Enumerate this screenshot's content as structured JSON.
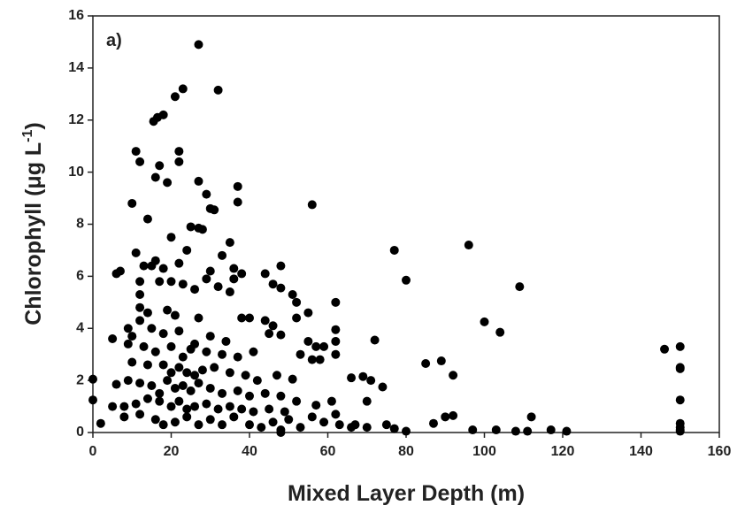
{
  "chart_data": {
    "type": "scatter",
    "panel_label": "a)",
    "xlabel": "Mixed Layer Depth (m)",
    "ylabel": [
      "Chlorophyll (μg L",
      "-1",
      ")"
    ],
    "xlim": [
      0,
      160
    ],
    "xticks": [
      0,
      20,
      40,
      60,
      80,
      100,
      120,
      140,
      160
    ],
    "ylim": [
      0,
      16
    ],
    "yticks": [
      0,
      2,
      4,
      6,
      8,
      10,
      12,
      14,
      16
    ],
    "grid": false,
    "series": [
      {
        "color": "#000000",
        "x": [
          27,
          23,
          32,
          21,
          18,
          16.5,
          15.5,
          11,
          22,
          12,
          22,
          17,
          16,
          19,
          27,
          29,
          37,
          10,
          30,
          31,
          37,
          56,
          14,
          25,
          27,
          28,
          20,
          35,
          77,
          96,
          24,
          11,
          16,
          33,
          6,
          7,
          13,
          15,
          18,
          22,
          30,
          36,
          38,
          44,
          48,
          80,
          109,
          12,
          17,
          20,
          23,
          29,
          36,
          46,
          48,
          51,
          12,
          26,
          32,
          35,
          52,
          62,
          55,
          100,
          104,
          12,
          14,
          19,
          21,
          27,
          38,
          40,
          44,
          46,
          52,
          62,
          12,
          15,
          9,
          10,
          5,
          18,
          22,
          30,
          34,
          45,
          48,
          55,
          57,
          59,
          62,
          72,
          9,
          13,
          16,
          20,
          25,
          29,
          33,
          37,
          41,
          53,
          56,
          62,
          58,
          85,
          89,
          92,
          146,
          150,
          150,
          150,
          150,
          150,
          150,
          150,
          150,
          10,
          14,
          18,
          22,
          24,
          26,
          28,
          31,
          35,
          39,
          42,
          47,
          51,
          66,
          69,
          71,
          74,
          0,
          6,
          9,
          12,
          15,
          19,
          21,
          23,
          25,
          27,
          30,
          33,
          37,
          40,
          44,
          48,
          52,
          57,
          61,
          0,
          5,
          8,
          11,
          14,
          17,
          20,
          22,
          24,
          26,
          29,
          32,
          35,
          38,
          41,
          45,
          49,
          62,
          67,
          2,
          8,
          12,
          16,
          18,
          21,
          24,
          27,
          30,
          33,
          36,
          40,
          43,
          46,
          48,
          53,
          56,
          59,
          63,
          66,
          70,
          75,
          77,
          80,
          87,
          90,
          92,
          97,
          103,
          108,
          111,
          112,
          117,
          121,
          50,
          70,
          48,
          20,
          23,
          26,
          17
        ],
        "values": [
          14.9,
          13.2,
          13.15,
          12.9,
          12.2,
          12.1,
          11.95,
          10.8,
          10.8,
          10.4,
          10.4,
          10.25,
          9.8,
          9.6,
          9.65,
          9.15,
          9.45,
          8.8,
          8.6,
          8.55,
          8.85,
          8.75,
          8.2,
          7.9,
          7.85,
          7.8,
          7.5,
          7.3,
          7.0,
          7.2,
          7.0,
          6.9,
          6.6,
          6.8,
          6.1,
          6.2,
          6.4,
          6.4,
          6.3,
          6.5,
          6.2,
          6.3,
          6.1,
          6.1,
          6.4,
          5.85,
          5.6,
          5.8,
          5.8,
          5.8,
          5.7,
          5.9,
          5.9,
          5.7,
          5.55,
          5.3,
          5.3,
          5.5,
          5.6,
          5.4,
          5.0,
          5.0,
          4.6,
          4.25,
          3.85,
          4.8,
          4.6,
          4.7,
          4.5,
          4.4,
          4.4,
          4.4,
          4.3,
          4.1,
          4.4,
          3.95,
          4.3,
          4.0,
          4.0,
          3.7,
          3.6,
          3.8,
          3.9,
          3.7,
          3.5,
          3.8,
          3.75,
          3.5,
          3.3,
          3.3,
          3.5,
          3.55,
          3.4,
          3.3,
          3.1,
          3.3,
          3.2,
          3.1,
          3.0,
          2.9,
          3.1,
          3.0,
          2.8,
          3.0,
          2.8,
          2.65,
          2.75,
          2.2,
          3.2,
          3.3,
          2.5,
          2.45,
          1.25,
          0.35,
          0.2,
          0.1,
          0.05,
          2.7,
          2.6,
          2.6,
          2.5,
          2.3,
          2.2,
          2.4,
          2.5,
          2.3,
          2.2,
          2.0,
          2.2,
          2.05,
          2.1,
          2.15,
          2.0,
          1.75,
          2.05,
          1.85,
          2.0,
          1.9,
          1.8,
          2.0,
          1.7,
          1.8,
          1.6,
          1.9,
          1.7,
          1.5,
          1.6,
          1.4,
          1.5,
          1.4,
          1.2,
          1.05,
          1.2,
          1.25,
          1.0,
          1.0,
          1.1,
          1.3,
          1.2,
          1.0,
          1.2,
          0.9,
          1.0,
          1.1,
          0.9,
          1.0,
          0.9,
          0.8,
          0.9,
          0.8,
          0.7,
          0.3,
          0.35,
          0.6,
          0.7,
          0.5,
          0.3,
          0.4,
          0.6,
          0.3,
          0.5,
          0.3,
          0.6,
          0.3,
          0.2,
          0.4,
          0.1,
          0.2,
          0.6,
          0.4,
          0.3,
          0.2,
          0.2,
          0.3,
          0.15,
          0.05,
          0.35,
          0.6,
          0.65,
          0.1,
          0.1,
          0.05,
          0.05,
          0.6,
          0.1,
          0.05,
          0.5,
          1.2,
          0.0,
          2.3,
          2.9,
          3.4,
          1.5
        ]
      }
    ]
  }
}
